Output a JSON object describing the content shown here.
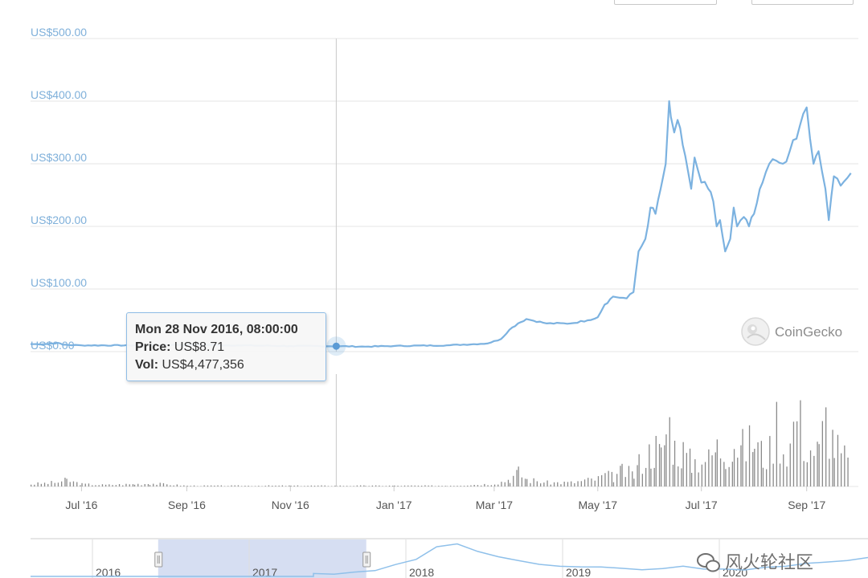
{
  "chart_data": {
    "type": "line",
    "y_axis": {
      "ticks": [
        "US$500.00",
        "US$400.00",
        "US$300.00",
        "US$200.00",
        "US$100.00",
        "US$0.00"
      ],
      "range": [
        0,
        500
      ]
    },
    "x_axis": {
      "ticks": [
        "Jul '16",
        "Sep '16",
        "Nov '16",
        "Jan '17",
        "Mar '17",
        "May '17",
        "Jul '17",
        "Sep '17"
      ],
      "range": [
        "2016-06-01",
        "2017-09-30"
      ]
    },
    "price_series": [
      [
        "2016-06-01",
        12
      ],
      [
        "2016-06-10",
        12
      ],
      [
        "2016-06-17",
        14
      ],
      [
        "2016-06-20",
        11
      ],
      [
        "2016-07-01",
        10
      ],
      [
        "2016-08-01",
        10
      ],
      [
        "2016-09-01",
        11
      ],
      [
        "2016-10-01",
        10
      ],
      [
        "2016-11-01",
        9
      ],
      [
        "2016-11-28",
        8.71
      ],
      [
        "2016-12-15",
        8
      ],
      [
        "2017-01-01",
        9
      ],
      [
        "2017-02-01",
        10
      ],
      [
        "2017-02-25",
        13
      ],
      [
        "2017-03-05",
        20
      ],
      [
        "2017-03-10",
        35
      ],
      [
        "2017-03-15",
        45
      ],
      [
        "2017-03-20",
        52
      ],
      [
        "2017-04-01",
        45
      ],
      [
        "2017-04-15",
        45
      ],
      [
        "2017-04-25",
        50
      ],
      [
        "2017-05-01",
        55
      ],
      [
        "2017-05-05",
        75
      ],
      [
        "2017-05-10",
        88
      ],
      [
        "2017-05-18",
        85
      ],
      [
        "2017-05-22",
        95
      ],
      [
        "2017-05-25",
        160
      ],
      [
        "2017-05-29",
        180
      ],
      [
        "2017-06-01",
        230
      ],
      [
        "2017-06-04",
        220
      ],
      [
        "2017-06-07",
        260
      ],
      [
        "2017-06-10",
        300
      ],
      [
        "2017-06-12",
        400
      ],
      [
        "2017-06-13",
        375
      ],
      [
        "2017-06-15",
        350
      ],
      [
        "2017-06-17",
        370
      ],
      [
        "2017-06-20",
        330
      ],
      [
        "2017-06-23",
        290
      ],
      [
        "2017-06-25",
        260
      ],
      [
        "2017-06-27",
        310
      ],
      [
        "2017-07-01",
        270
      ],
      [
        "2017-07-05",
        260
      ],
      [
        "2017-07-08",
        240
      ],
      [
        "2017-07-10",
        200
      ],
      [
        "2017-07-12",
        210
      ],
      [
        "2017-07-15",
        160
      ],
      [
        "2017-07-18",
        180
      ],
      [
        "2017-07-20",
        230
      ],
      [
        "2017-07-22",
        200
      ],
      [
        "2017-07-26",
        215
      ],
      [
        "2017-07-29",
        200
      ],
      [
        "2017-08-01",
        220
      ],
      [
        "2017-08-06",
        270
      ],
      [
        "2017-08-10",
        300
      ],
      [
        "2017-08-14",
        305
      ],
      [
        "2017-08-18",
        300
      ],
      [
        "2017-08-22",
        320
      ],
      [
        "2017-08-26",
        340
      ],
      [
        "2017-08-30",
        380
      ],
      [
        "2017-09-01",
        390
      ],
      [
        "2017-09-03",
        340
      ],
      [
        "2017-09-05",
        300
      ],
      [
        "2017-09-08",
        320
      ],
      [
        "2017-09-12",
        260
      ],
      [
        "2017-09-14",
        210
      ],
      [
        "2017-09-17",
        280
      ],
      [
        "2017-09-21",
        265
      ],
      [
        "2017-09-27",
        285
      ]
    ],
    "volume_series": [
      [
        "2016-06-01",
        0.03
      ],
      [
        "2016-06-15",
        0.05
      ],
      [
        "2016-06-22",
        0.08
      ],
      [
        "2016-07-01",
        0.03
      ],
      [
        "2016-07-15",
        0.02
      ],
      [
        "2016-08-01",
        0.03
      ],
      [
        "2016-08-10",
        0.04
      ],
      [
        "2016-09-01",
        0.01
      ],
      [
        "2016-10-01",
        0.01
      ],
      [
        "2016-11-01",
        0.01
      ],
      [
        "2016-11-28",
        0.01
      ],
      [
        "2016-12-15",
        0.01
      ],
      [
        "2017-01-01",
        0.01
      ],
      [
        "2017-02-01",
        0.01
      ],
      [
        "2017-02-25",
        0.03
      ],
      [
        "2017-03-05",
        0.06
      ],
      [
        "2017-03-10",
        0.1
      ],
      [
        "2017-03-15",
        0.18
      ],
      [
        "2017-03-20",
        0.09
      ],
      [
        "2017-04-01",
        0.05
      ],
      [
        "2017-04-15",
        0.05
      ],
      [
        "2017-05-01",
        0.1
      ],
      [
        "2017-05-05",
        0.15
      ],
      [
        "2017-05-10",
        0.12
      ],
      [
        "2017-05-15",
        0.2
      ],
      [
        "2017-05-22",
        0.15
      ],
      [
        "2017-05-25",
        0.3
      ],
      [
        "2017-05-29",
        0.4
      ],
      [
        "2017-06-01",
        0.45
      ],
      [
        "2017-06-04",
        0.5
      ],
      [
        "2017-06-07",
        0.4
      ],
      [
        "2017-06-10",
        0.7
      ],
      [
        "2017-06-12",
        0.8
      ],
      [
        "2017-06-15",
        0.5
      ],
      [
        "2017-06-20",
        0.45
      ],
      [
        "2017-06-25",
        0.3
      ],
      [
        "2017-07-01",
        0.4
      ],
      [
        "2017-07-05",
        0.35
      ],
      [
        "2017-07-10",
        0.5
      ],
      [
        "2017-07-15",
        0.45
      ],
      [
        "2017-07-20",
        0.6
      ],
      [
        "2017-07-25",
        0.5
      ],
      [
        "2017-08-01",
        0.6
      ],
      [
        "2017-08-06",
        0.4
      ],
      [
        "2017-08-10",
        0.45
      ],
      [
        "2017-08-14",
        0.85
      ],
      [
        "2017-08-18",
        0.5
      ],
      [
        "2017-08-22",
        0.55
      ],
      [
        "2017-08-26",
        1.0
      ],
      [
        "2017-08-30",
        0.6
      ],
      [
        "2017-09-03",
        0.5
      ],
      [
        "2017-09-08",
        0.45
      ],
      [
        "2017-09-12",
        0.9
      ],
      [
        "2017-09-17",
        0.55
      ],
      [
        "2017-09-21",
        0.4
      ],
      [
        "2017-09-27",
        0.3
      ]
    ],
    "tooltip": {
      "title": "Mon 28 Nov 2016, 08:00:00",
      "price_label": "Price:",
      "price_value": "US$8.71",
      "vol_label": "Vol:",
      "vol_value": "US$4,477,356",
      "highlight_x": "2016-11-28",
      "highlight_y": 8.71
    },
    "brand": "CoinGecko",
    "navigator": {
      "years": [
        "2016",
        "2017",
        "2018",
        "2019",
        "2020"
      ],
      "selected_range": [
        "2016-06-01",
        "2017-09-30"
      ],
      "series": [
        0.1,
        0.1,
        0.12,
        0.15,
        0.35,
        0.55,
        0.9,
        1.0,
        0.8,
        0.6,
        0.5,
        0.4,
        0.35,
        0.3,
        0.28,
        0.25,
        0.2,
        0.25,
        0.3,
        0.25,
        0.2,
        0.22,
        0.25,
        0.3,
        0.4,
        0.45,
        0.5,
        0.6
      ]
    },
    "colors": {
      "price_line": "#7cb2e0",
      "y_tick_text": "#7fb0da",
      "volume_bars": "#8a8a8a",
      "tooltip_border": "#8fbde6",
      "navigator_selection": "#c8d3ee"
    },
    "grid": true
  },
  "watermark": "风火轮社区"
}
